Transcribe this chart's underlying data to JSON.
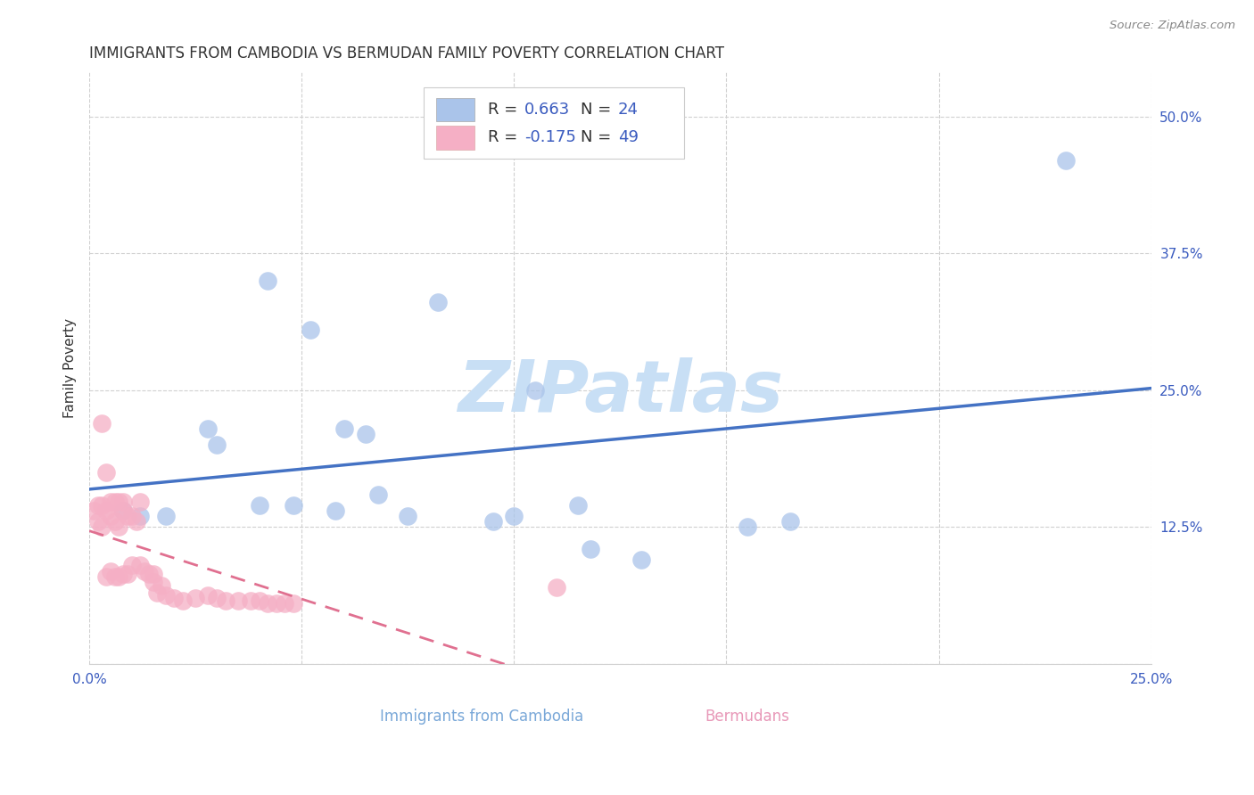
{
  "title": "IMMIGRANTS FROM CAMBODIA VS BERMUDAN FAMILY POVERTY CORRELATION CHART",
  "source": "Source: ZipAtlas.com",
  "xlabel_cambodia": "Immigrants from Cambodia",
  "xlabel_bermudans": "Bermudans",
  "ylabel": "Family Poverty",
  "watermark": "ZIPatlas",
  "xlim": [
    0.0,
    0.25
  ],
  "ylim": [
    0.0,
    0.54
  ],
  "xticks": [
    0.0,
    0.05,
    0.1,
    0.15,
    0.2,
    0.25
  ],
  "xtick_labels": [
    "0.0%",
    "",
    "",
    "",
    "",
    "25.0%"
  ],
  "yticks": [
    0.0,
    0.125,
    0.25,
    0.375,
    0.5
  ],
  "ytick_labels": [
    "",
    "12.5%",
    "25.0%",
    "37.5%",
    "50.0%"
  ],
  "cambodia_scatter_x": [
    0.008,
    0.018,
    0.028,
    0.03,
    0.04,
    0.042,
    0.048,
    0.052,
    0.058,
    0.06,
    0.065,
    0.068,
    0.075,
    0.082,
    0.095,
    0.1,
    0.105,
    0.115,
    0.118,
    0.13,
    0.155,
    0.165,
    0.23,
    0.012
  ],
  "cambodia_scatter_y": [
    0.14,
    0.135,
    0.215,
    0.2,
    0.145,
    0.35,
    0.145,
    0.305,
    0.14,
    0.215,
    0.21,
    0.155,
    0.135,
    0.33,
    0.13,
    0.135,
    0.25,
    0.145,
    0.105,
    0.095,
    0.125,
    0.13,
    0.46,
    0.135
  ],
  "bermuda_scatter_x": [
    0.001,
    0.002,
    0.002,
    0.003,
    0.003,
    0.004,
    0.004,
    0.005,
    0.005,
    0.006,
    0.006,
    0.007,
    0.007,
    0.008,
    0.008,
    0.009,
    0.009,
    0.01,
    0.01,
    0.011,
    0.012,
    0.013,
    0.014,
    0.015,
    0.015,
    0.016,
    0.017,
    0.018,
    0.02,
    0.022,
    0.025,
    0.028,
    0.03,
    0.032,
    0.035,
    0.038,
    0.04,
    0.042,
    0.044,
    0.046,
    0.048,
    0.003,
    0.004,
    0.005,
    0.006,
    0.007,
    0.008,
    0.012,
    0.11
  ],
  "bermuda_scatter_y": [
    0.14,
    0.145,
    0.13,
    0.145,
    0.125,
    0.14,
    0.08,
    0.135,
    0.085,
    0.13,
    0.08,
    0.125,
    0.08,
    0.14,
    0.082,
    0.135,
    0.082,
    0.135,
    0.09,
    0.13,
    0.09,
    0.085,
    0.082,
    0.082,
    0.075,
    0.065,
    0.072,
    0.063,
    0.06,
    0.058,
    0.06,
    0.063,
    0.06,
    0.058,
    0.058,
    0.058,
    0.058,
    0.055,
    0.055,
    0.055,
    0.055,
    0.22,
    0.175,
    0.148,
    0.148,
    0.148,
    0.148,
    0.148,
    0.07
  ],
  "cambodia_color": "#aac4ea",
  "bermuda_color": "#f5afc5",
  "cambodia_line_color": "#4472c4",
  "bermuda_line_color": "#e07090",
  "grid_color": "#d0d0d0",
  "background_color": "#ffffff",
  "title_fontsize": 12,
  "axis_label_fontsize": 11,
  "tick_fontsize": 11,
  "tick_color": "#3a5bbf",
  "source_color": "#888888",
  "watermark_color": "#c8dff5"
}
